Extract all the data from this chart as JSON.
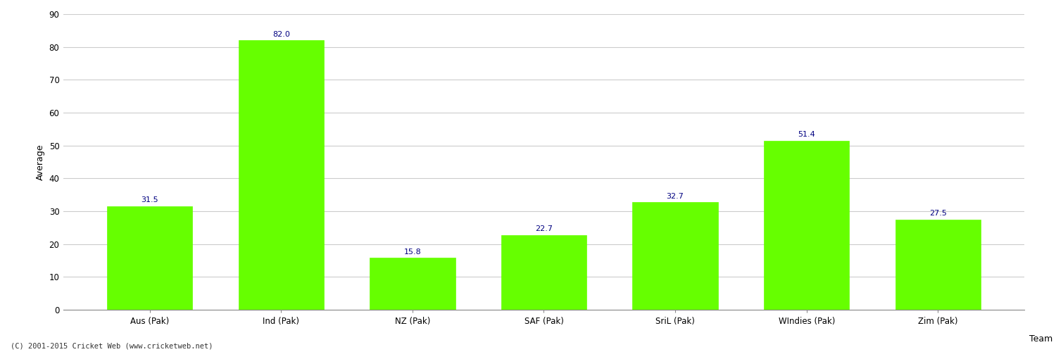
{
  "categories": [
    "Aus (Pak)",
    "Ind (Pak)",
    "NZ (Pak)",
    "SAF (Pak)",
    "SriL (Pak)",
    "WIndies (Pak)",
    "Zim (Pak)"
  ],
  "values": [
    31.5,
    82.0,
    15.8,
    22.7,
    32.7,
    51.4,
    27.5
  ],
  "bar_color": "#66ff00",
  "bar_edge_color": "#66ff00",
  "label_color": "#000080",
  "xlabel": "Team",
  "ylabel": "Average",
  "ylim": [
    0,
    90
  ],
  "yticks": [
    0,
    10,
    20,
    30,
    40,
    50,
    60,
    70,
    80,
    90
  ],
  "grid_color": "#cccccc",
  "background_color": "#ffffff",
  "label_fontsize": 8,
  "axis_fontsize": 9,
  "tick_fontsize": 8.5,
  "footer": "(C) 2001-2015 Cricket Web (www.cricketweb.net)"
}
